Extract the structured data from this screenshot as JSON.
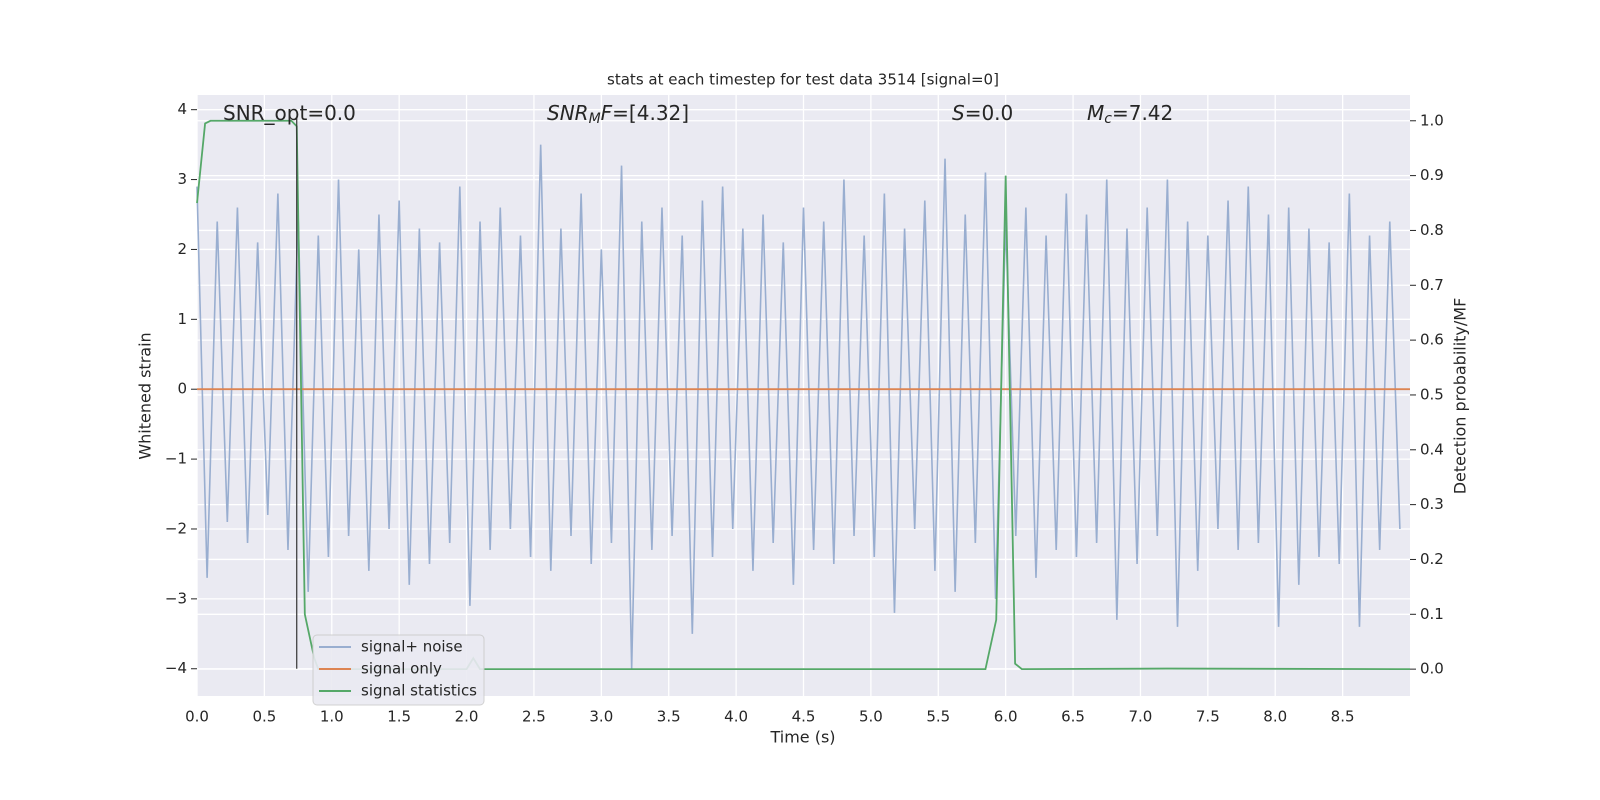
{
  "chart_data": {
    "type": "line",
    "title": "stats at each timestep for test data 3514 [signal=0]",
    "xlabel": "Time (s)",
    "ylabel": "Whitened strain",
    "y2label": "Detection probability/MF",
    "xlim": [
      0,
      9.0
    ],
    "ylim": [
      -4.39,
      4.21
    ],
    "y2lim": [
      -0.049,
      1.047
    ],
    "xticks": [
      {
        "value": 0,
        "label": "0.0"
      },
      0.5,
      {
        "value": 1,
        "label": "1.0"
      },
      1.5,
      {
        "value": 2,
        "label": "2.0"
      },
      2.5,
      {
        "value": 3,
        "label": "3.0"
      },
      3.5,
      {
        "value": 4,
        "label": "4.0"
      },
      4.5,
      {
        "value": 5,
        "label": "5.0"
      },
      5.5,
      {
        "value": 6,
        "label": "6.0"
      },
      6.5,
      {
        "value": 7,
        "label": "7.0"
      },
      7.5,
      {
        "value": 8,
        "label": "8.0"
      },
      8.5
    ],
    "yticks": [
      {
        "value": -4,
        "label": "−4"
      },
      {
        "value": -3,
        "label": "−3"
      },
      {
        "value": -2,
        "label": "−2"
      },
      {
        "value": -1,
        "label": "−1"
      },
      0,
      1,
      2,
      3,
      4
    ],
    "y2ticks": [
      {
        "value": 0,
        "label": "0.0"
      },
      0.1,
      0.2,
      0.3,
      0.4,
      0.5,
      0.6,
      0.7,
      0.8,
      0.9,
      {
        "value": 1,
        "label": "1.0"
      }
    ],
    "grid": true,
    "legend": "lower left",
    "series": [
      {
        "name": "signal+ noise",
        "color": "#99aed0",
        "x": [
          0,
          0.075,
          0.15,
          0.225,
          0.3,
          0.375,
          0.45,
          0.525,
          0.6,
          0.675,
          0.75,
          0.825,
          0.9,
          0.975,
          1.05,
          1.125,
          1.2,
          1.275,
          1.35,
          1.425,
          1.5,
          1.575,
          1.65,
          1.725,
          1.8,
          1.875,
          1.95,
          2.025,
          2.1,
          2.175,
          2.25,
          2.325,
          2.4,
          2.475,
          2.55,
          2.625,
          2.7,
          2.775,
          2.85,
          2.925,
          3.0,
          3.075,
          3.15,
          3.225,
          3.3,
          3.375,
          3.45,
          3.525,
          3.6,
          3.675,
          3.75,
          3.825,
          3.9,
          3.975,
          4.05,
          4.125,
          4.2,
          4.275,
          4.35,
          4.425,
          4.5,
          4.575,
          4.65,
          4.725,
          4.8,
          4.875,
          4.95,
          5.025,
          5.1,
          5.175,
          5.25,
          5.325,
          5.4,
          5.475,
          5.55,
          5.625,
          5.7,
          5.775,
          5.85,
          5.925,
          6.0,
          6.075,
          6.15,
          6.225,
          6.3,
          6.375,
          6.45,
          6.525,
          6.6,
          6.675,
          6.75,
          6.825,
          6.9,
          6.975,
          7.05,
          7.125,
          7.2,
          7.275,
          7.35,
          7.425,
          7.5,
          7.575,
          7.65,
          7.725,
          7.8,
          7.875,
          7.95,
          8.025,
          8.1,
          8.175,
          8.25,
          8.325,
          8.4,
          8.475,
          8.55,
          8.625,
          8.7,
          8.775,
          8.85,
          8.925
        ],
        "values": [
          2.9,
          -2.7,
          2.4,
          -1.9,
          2.6,
          -2.2,
          2.1,
          -1.8,
          2.8,
          -2.3,
          2.5,
          -2.9,
          2.2,
          -2.4,
          3.0,
          -2.1,
          2.0,
          -2.6,
          2.5,
          -2.0,
          2.7,
          -2.8,
          2.3,
          -2.5,
          2.1,
          -2.2,
          2.9,
          -3.1,
          2.4,
          -2.3,
          2.6,
          -2.0,
          2.2,
          -2.4,
          3.5,
          -2.6,
          2.3,
          -2.1,
          2.8,
          -2.5,
          2.0,
          -2.2,
          3.2,
          -4.0,
          2.4,
          -2.3,
          2.6,
          -2.1,
          2.2,
          -3.5,
          2.7,
          -2.4,
          2.9,
          -2.0,
          2.3,
          -2.6,
          2.5,
          -2.2,
          2.1,
          -2.8,
          2.6,
          -2.3,
          2.4,
          -2.5,
          3.0,
          -2.1,
          2.2,
          -2.4,
          2.8,
          -3.2,
          2.3,
          -2.0,
          2.7,
          -2.6,
          3.3,
          -2.9,
          2.5,
          -2.2,
          3.1,
          -3.0,
          2.4,
          -2.1,
          2.6,
          -2.7,
          2.2,
          -2.3,
          2.8,
          -2.4,
          2.5,
          -2.2,
          3.0,
          -3.3,
          2.3,
          -2.5,
          2.6,
          -2.1,
          3.0,
          -3.4,
          2.4,
          -2.6,
          2.2,
          -2.0,
          2.7,
          -2.3,
          2.9,
          -2.2,
          2.5,
          -3.4,
          2.6,
          -2.8,
          2.3,
          -2.4,
          2.1,
          -2.5,
          2.8,
          -3.4,
          2.2,
          -2.3,
          2.4,
          -2.0
        ]
      },
      {
        "name": "signal only",
        "color": "#dd8452",
        "x": [
          0,
          9.0
        ],
        "values": [
          0,
          0
        ]
      },
      {
        "name": "signal statistics",
        "color": "#55a868",
        "axis": "y2",
        "x": [
          0,
          0.06,
          0.1,
          0.7,
          0.74,
          0.8,
          0.87,
          0.9,
          2.0,
          2.05,
          2.1,
          2.2,
          5.85,
          5.93,
          6.0,
          6.07,
          6.12,
          7.2,
          9.0
        ],
        "values": [
          0.85,
          0.995,
          1.0,
          1.0,
          0.99,
          0.1,
          0.02,
          0.0,
          0.0,
          0.02,
          0.0,
          0.0,
          0.0,
          0.09,
          0.9,
          0.01,
          0.0,
          0.001,
          0.0
        ]
      }
    ],
    "vline": {
      "x": 0.74,
      "y": [
        -4,
        3.9
      ],
      "color": "#333333"
    },
    "annotations": [
      [
        {
          "text": "SNR_opt=0.0",
          "style": "normal"
        }
      ],
      [
        {
          "text": "SNR",
          "style": "italic"
        },
        {
          "text": "M",
          "style": "sub"
        },
        {
          "text": "F",
          "style": "italic"
        },
        {
          "text": "=[4.32]",
          "style": "normal"
        }
      ],
      [
        {
          "text": "S",
          "style": "italic"
        },
        {
          "text": "=0.0",
          "style": "normal"
        }
      ],
      [
        {
          "text": "M",
          "style": "italic"
        },
        {
          "text": "c",
          "style": "sub"
        },
        {
          "text": "=7.42",
          "style": "normal"
        }
      ]
    ]
  }
}
